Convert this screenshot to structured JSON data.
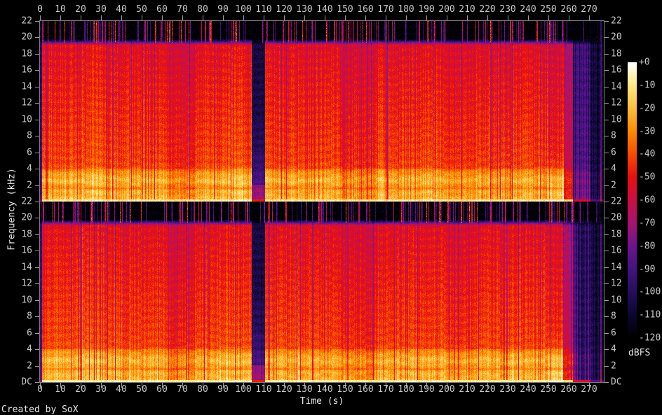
{
  "credit": "Created by SoX",
  "background": "#000000",
  "axis_color": "#7d7d7d",
  "tick_text_color": "#c8c8c8",
  "label_text_color": "#e6e6e6",
  "chart_data": {
    "type": "heatmap",
    "subtype": "audio-spectrogram",
    "channels": 2,
    "title": "",
    "xlabel": "Time (s)",
    "ylabel": "Frequency (kHz)",
    "x_ticks": [
      0,
      10,
      20,
      30,
      40,
      50,
      60,
      70,
      80,
      90,
      100,
      110,
      120,
      130,
      140,
      150,
      160,
      170,
      180,
      190,
      200,
      210,
      220,
      230,
      240,
      250,
      260,
      270
    ],
    "x_range_s": [
      0,
      277
    ],
    "y_ticks_khz": [
      "22",
      "20",
      "18",
      "16",
      "14",
      "12",
      "10",
      "8",
      "6",
      "4",
      "2",
      "DC"
    ],
    "y_range_khz": [
      0,
      22
    ],
    "grid": false,
    "legend_position": "none",
    "colorbar": {
      "label": "dBFS",
      "tick_labels": [
        "+0",
        "-10",
        "-20",
        "-30",
        "-40",
        "-50",
        "-60",
        "-70",
        "-80",
        "-90",
        "-100",
        "-110",
        "-120"
      ],
      "range_db": [
        -120,
        0
      ],
      "palette": [
        {
          "db": 0,
          "c": "#ffffff"
        },
        {
          "db": -10,
          "c": "#ffe882"
        },
        {
          "db": -20,
          "c": "#ffbe3c"
        },
        {
          "db": -30,
          "c": "#ff8a00"
        },
        {
          "db": -40,
          "c": "#f94b02"
        },
        {
          "db": -50,
          "c": "#e81010"
        },
        {
          "db": -60,
          "c": "#cc0d45"
        },
        {
          "db": -70,
          "c": "#a81370"
        },
        {
          "db": -80,
          "c": "#6e158f"
        },
        {
          "db": -90,
          "c": "#441380"
        },
        {
          "db": -100,
          "c": "#250e5e"
        },
        {
          "db": -110,
          "c": "#0c0730"
        },
        {
          "db": -120,
          "c": "#000000"
        }
      ]
    },
    "features": {
      "lowpass_cutoff_khz": 19.4,
      "bright_bands_khz": [
        1.2,
        2.55,
        3.5
      ],
      "dark_band_khz": 1.55,
      "quiet_gap_s": [
        104,
        110.5
      ],
      "fade_out_start_s": 262,
      "track_end_s": 277,
      "segments": [
        [
          0,
          1,
          0.35,
          ""
        ],
        [
          1,
          20,
          1.0,
          ""
        ],
        [
          20,
          31,
          1.05,
          ""
        ],
        [
          31,
          63,
          1.0,
          ""
        ],
        [
          63,
          76,
          0.93,
          ""
        ],
        [
          76,
          90,
          1.0,
          ""
        ],
        [
          90,
          104,
          1.03,
          ""
        ],
        [
          104,
          110.5,
          0.5,
          "gap"
        ],
        [
          110.5,
          147,
          1.0,
          ""
        ],
        [
          147,
          166,
          0.94,
          ""
        ],
        [
          166,
          199,
          1.01,
          ""
        ],
        [
          199,
          214,
          0.96,
          ""
        ],
        [
          214,
          250,
          1.0,
          ""
        ],
        [
          250,
          257.5,
          0.95,
          "hotlow"
        ],
        [
          257.5,
          262,
          0.75,
          ""
        ],
        [
          262,
          270.5,
          0.45,
          "streaky"
        ],
        [
          270.5,
          275.5,
          0.22,
          "streaky"
        ],
        [
          275.5,
          276.2,
          0.5,
          "line"
        ],
        [
          276.2,
          277.5,
          0.08,
          ""
        ]
      ],
      "channel2_accent_line_s": 20
    }
  }
}
